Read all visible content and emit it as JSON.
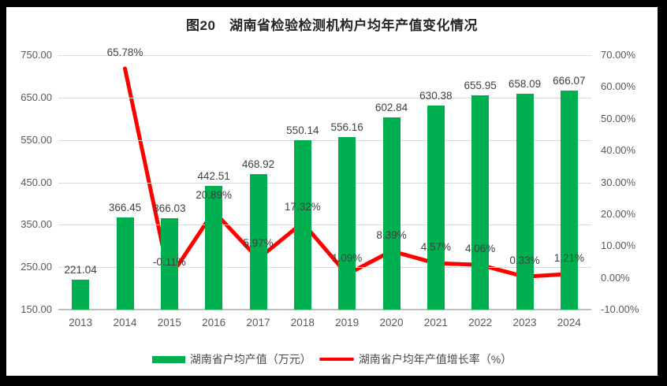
{
  "title": "图20　湖南省检验检测机构户均年产值变化情况",
  "colors": {
    "bar": "#00B050",
    "line": "#FF0000",
    "grid": "#D9D9D9",
    "axis_line": "#BFBFBF",
    "axis_text": "#595959",
    "data_label_text": "#404040",
    "title_text": "#262626",
    "chart_background": "#FFFFFF",
    "outer_border": "#000000"
  },
  "chart_data": {
    "type": "combo",
    "title": "图20　湖南省检验检测机构户均年产值变化情况",
    "grid": true,
    "legend_position": "bottom",
    "categories": [
      "2013",
      "2014",
      "2015",
      "2016",
      "2017",
      "2018",
      "2019",
      "2020",
      "2021",
      "2022",
      "2023",
      "2024"
    ],
    "series": [
      {
        "name": "湖南省户均产值（万元）",
        "type": "bar",
        "axis": "left",
        "color": "#00B050",
        "values": [
          221.04,
          366.45,
          366.03,
          442.51,
          468.92,
          550.14,
          556.16,
          602.84,
          630.38,
          655.95,
          658.09,
          666.07
        ],
        "labels": [
          "221.04",
          "366.45",
          "366.03",
          "442.51",
          "468.92",
          "550.14",
          "556.16",
          "602.84",
          "630.38",
          "655.95",
          "658.09",
          "666.07"
        ]
      },
      {
        "name": "湖南省户均年产值增长率（%）",
        "type": "line",
        "axis": "right",
        "color": "#FF0000",
        "values": [
          null,
          65.78,
          -0.11,
          20.89,
          5.97,
          17.32,
          1.09,
          8.39,
          4.57,
          4.06,
          0.33,
          1.21
        ],
        "labels": [
          null,
          "65.78%",
          "-0.11%",
          "20.89%",
          "5.97%",
          "17.32%",
          "1.09%",
          "8.39%",
          "4.57%",
          "4.06%",
          "0.33%",
          "1.21%"
        ]
      }
    ],
    "left_axis": {
      "min": 150,
      "max": 750,
      "step": 100,
      "tick_labels": [
        "750.00",
        "650.00",
        "550.00",
        "450.00",
        "350.00",
        "250.00",
        "150.00"
      ]
    },
    "right_axis": {
      "min": -10,
      "max": 70,
      "step": 10,
      "tick_labels": [
        "70.00%",
        "60.00%",
        "50.00%",
        "40.00%",
        "30.00%",
        "20.00%",
        "10.00%",
        "0.00%",
        "-10.00%"
      ]
    }
  }
}
